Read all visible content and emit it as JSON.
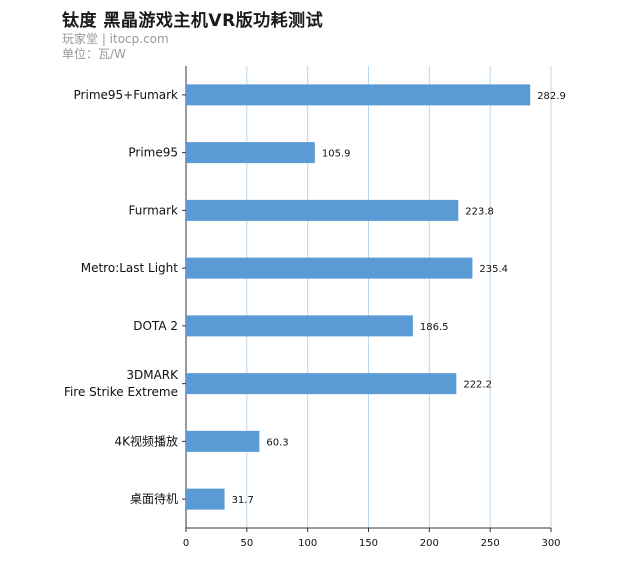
{
  "header": {
    "title": "钛度 黑晶游戏主机VR版功耗测试",
    "subtitle": "玩家堂 | itocp.com",
    "unit": "单位：瓦/W"
  },
  "colors": {
    "bar": "#5b9bd5",
    "grid": "#b9d7ee",
    "axis": "#333333"
  },
  "chart_data": {
    "type": "bar",
    "orientation": "horizontal",
    "title": "钛度 黑晶游戏主机VR版功耗测试",
    "xlim": [
      0,
      300
    ],
    "xticks": [
      0,
      50,
      100,
      150,
      200,
      250,
      300
    ],
    "grid": true,
    "categories": [
      [
        "Prime95+Fumark"
      ],
      [
        "Prime95"
      ],
      [
        "Furmark"
      ],
      [
        "Metro:Last Light"
      ],
      [
        "DOTA 2"
      ],
      [
        "3DMARK",
        "Fire Strike Extreme"
      ],
      [
        "4K视频播放"
      ],
      [
        "桌面待机"
      ]
    ],
    "values": [
      282.9,
      105.9,
      223.8,
      235.4,
      186.5,
      222.2,
      60.3,
      31.7
    ],
    "value_labels": [
      "282.9",
      "105.9",
      "223.8",
      "235.4",
      "186.5",
      "222.2",
      "60.3",
      "31.7"
    ]
  }
}
